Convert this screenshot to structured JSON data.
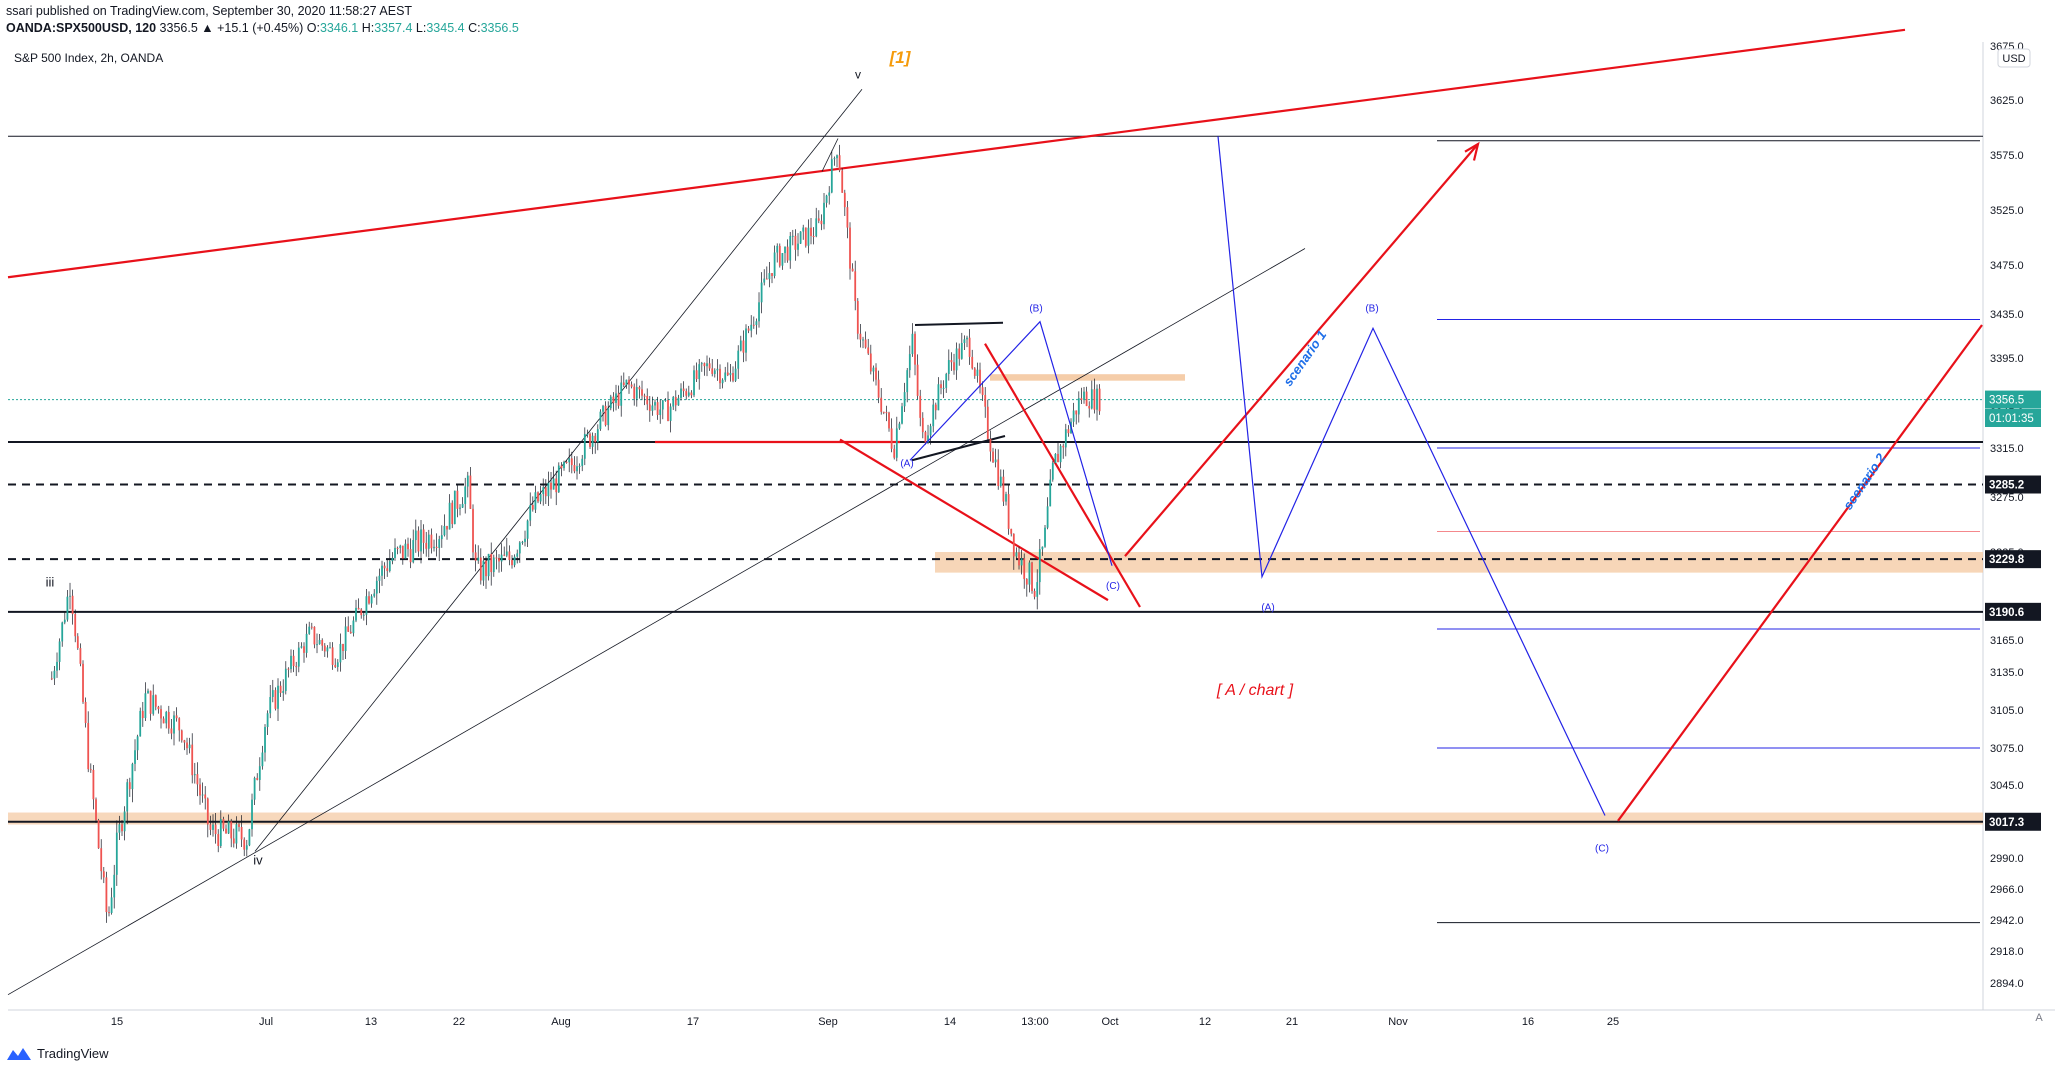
{
  "header": {
    "published": "ssari published on TradingView.com, September 30, 2020 11:58:27 AEST",
    "symbol": "OANDA:SPX500USD, 120",
    "change": "3356.5 ▲ +15.1 (+0.45%)",
    "o_label": "O:",
    "o": "3346.1",
    "h_label": "H:",
    "h": "3357.4",
    "l_label": "L:",
    "l": "3345.4",
    "c_label": "C:",
    "c": "3356.5"
  },
  "footer": {
    "brand": "TradingView"
  },
  "colors": {
    "up": "#26a69a",
    "down": "#ef5350",
    "red": "#e8111a",
    "blue": "#2323e6",
    "orange_zone": "#f4c8a0",
    "accent": "#f59b0b",
    "scenario": "#1e6ee8"
  },
  "chart_data": {
    "type": "candlestick",
    "title": "S&P 500 Index, 2h, OANDA",
    "annotation_top": "[1]",
    "annotation_mid": "[ A / chart ]",
    "currency": "USD",
    "y_ticks": [
      "3675.0",
      "3625.0",
      "3575.0",
      "3525.0",
      "3475.0",
      "3435.0",
      "3395.0",
      "3345.0",
      "3315.0",
      "3275.0",
      "3235.0",
      "3195.0",
      "3165.0",
      "3135.0",
      "3105.0",
      "3075.0",
      "3045.0",
      "2990.0",
      "2966.0",
      "2942.0",
      "2918.0",
      "2894.0"
    ],
    "x_ticks": [
      "15",
      "Jul",
      "13",
      "22",
      "Aug",
      "17",
      "Sep",
      "14",
      "13:00",
      "Oct",
      "12",
      "21",
      "Nov",
      "16",
      "25"
    ],
    "price_tags": [
      {
        "label": "3356.5",
        "price": 3356.5,
        "style": "last"
      },
      {
        "label": "01:01:35",
        "price": 3340,
        "style": "timer"
      },
      {
        "label": "3285.2",
        "price": 3285.2,
        "style": "dark"
      },
      {
        "label": "3229.8",
        "price": 3229.8,
        "style": "dark"
      },
      {
        "label": "3190.6",
        "price": 3190.6,
        "style": "dark"
      },
      {
        "label": "3017.3",
        "price": 3017.3,
        "style": "dark"
      }
    ],
    "wave_labels": [
      "iii",
      "iv",
      "v",
      "(A)",
      "(B)",
      "(C)",
      "(A)",
      "(B)",
      "(C)"
    ],
    "scenarios": [
      "scenario 1",
      "scenario 2"
    ],
    "price_path": [
      [
        "2020-06-08",
        3130
      ],
      [
        "2020-06-10",
        3215
      ],
      [
        "2020-06-12",
        3060
      ],
      [
        "2020-06-14",
        2940
      ],
      [
        "2020-06-15",
        3000
      ],
      [
        "2020-06-18",
        3115
      ],
      [
        "2020-06-22",
        3090
      ],
      [
        "2020-06-25",
        3010
      ],
      [
        "2020-06-29",
        3005
      ],
      [
        "2020-07-01",
        3100
      ],
      [
        "2020-07-06",
        3170
      ],
      [
        "2020-07-09",
        3150
      ],
      [
        "2020-07-13",
        3210
      ],
      [
        "2020-07-15",
        3230
      ],
      [
        "2020-07-20",
        3250
      ],
      [
        "2020-07-23",
        3285
      ],
      [
        "2020-07-24",
        3220
      ],
      [
        "2020-07-28",
        3230
      ],
      [
        "2020-07-31",
        3270
      ],
      [
        "2020-08-04",
        3300
      ],
      [
        "2020-08-10",
        3370
      ],
      [
        "2020-08-14",
        3345
      ],
      [
        "2020-08-19",
        3390
      ],
      [
        "2020-08-21",
        3375
      ],
      [
        "2020-08-26",
        3480
      ],
      [
        "2020-08-31",
        3510
      ],
      [
        "2020-09-02",
        3585
      ],
      [
        "2020-09-04",
        3430
      ],
      [
        "2020-09-08",
        3315
      ],
      [
        "2020-09-10",
        3410
      ],
      [
        "2020-09-11",
        3320
      ],
      [
        "2020-09-14",
        3390
      ],
      [
        "2020-09-16",
        3410
      ],
      [
        "2020-09-18",
        3330
      ],
      [
        "2020-09-21",
        3235
      ],
      [
        "2020-09-23",
        3210
      ],
      [
        "2020-09-24",
        3240
      ],
      [
        "2020-09-25",
        3300
      ],
      [
        "2020-09-28",
        3360
      ],
      [
        "2020-09-30",
        3356.5
      ]
    ]
  }
}
